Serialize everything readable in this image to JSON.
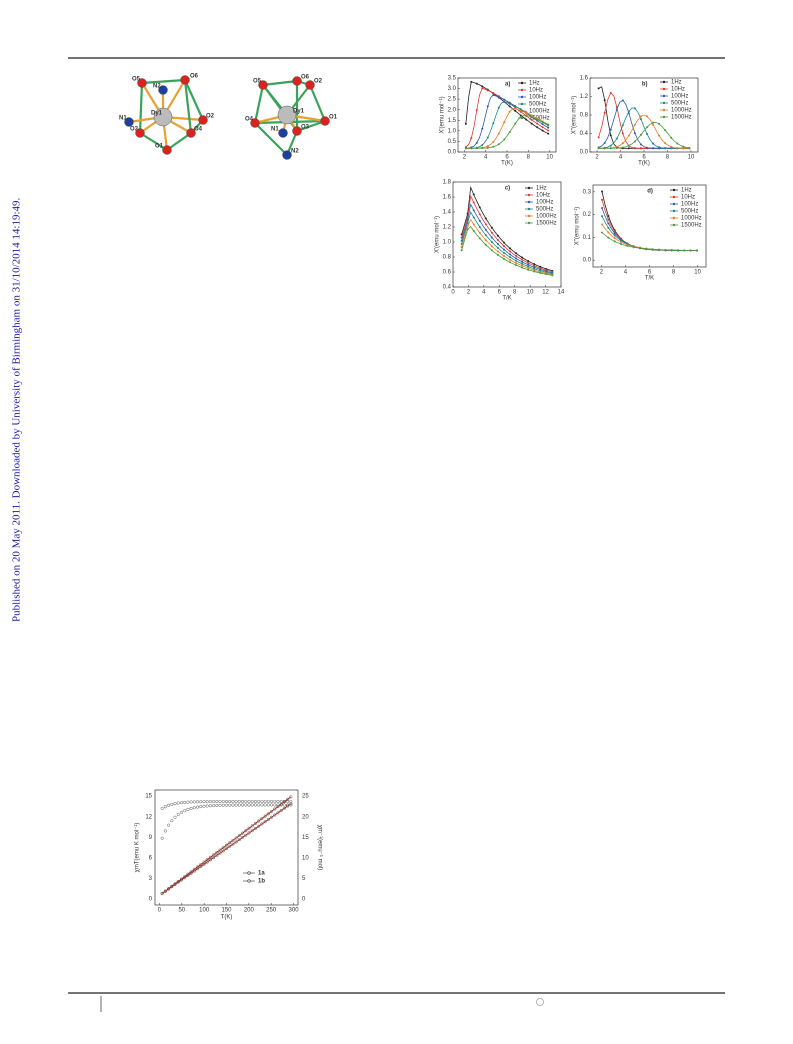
{
  "side_note": "Published on 20 May 2011. Downloaded by University of Birmingham on 31/10/2014 14:19:49.",
  "figures": {
    "molecule_a": {
      "labels": [
        "O5",
        "O6",
        "N2",
        "Dy1",
        "N1",
        "O2",
        "O3",
        "O4",
        "O1"
      ]
    },
    "molecule_b": {
      "labels": [
        "O5",
        "O6",
        "O2",
        "Dy1",
        "O4",
        "O3",
        "O1",
        "N1",
        "N2"
      ]
    },
    "panel_a": {
      "tag": "a)",
      "x_label": "T(K)",
      "y_label": "X'(emu mol⁻¹)",
      "x_ticks": [
        "2",
        "4",
        "6",
        "8",
        "10"
      ],
      "y_ticks": [
        "0.0",
        "0.5",
        "1.0",
        "1.5",
        "2.0",
        "2.5",
        "3.0",
        "3.5"
      ],
      "legend": [
        "1Hz",
        "10Hz",
        "100Hz",
        "500Hz",
        "1000Hz",
        "1500Hz"
      ]
    },
    "panel_b": {
      "tag": "b)",
      "x_label": "T(K)",
      "y_label": "X''(emu mol⁻¹)",
      "x_ticks": [
        "2",
        "4",
        "6",
        "8",
        "10"
      ],
      "y_ticks": [
        "0.0",
        "0.4",
        "0.8",
        "1.2",
        "1.6"
      ],
      "legend": [
        "1Hz",
        "10Hz",
        "100Hz",
        "500Hz",
        "1000Hz",
        "1500Hz"
      ]
    },
    "panel_c": {
      "tag": "c)",
      "x_label": "T/K",
      "y_label": "X'(emu mol⁻¹)",
      "x_ticks": [
        "0",
        "2",
        "4",
        "6",
        "8",
        "10",
        "12",
        "14"
      ],
      "y_ticks": [
        "0.4",
        "0.6",
        "0.8",
        "1.0",
        "1.2",
        "1.4",
        "1.6",
        "1.8"
      ],
      "legend": [
        "1Hz",
        "10Hz",
        "100Hz",
        "500Hz",
        "1000Hz",
        "1500Hz"
      ]
    },
    "panel_d": {
      "tag": "d)",
      "x_label": "T/K",
      "y_label": "X''(emu mol⁻¹)",
      "x_ticks": [
        "2",
        "4",
        "6",
        "8",
        "10"
      ],
      "y_ticks": [
        "0.0",
        "0.1",
        "0.2",
        "0.3"
      ],
      "legend": [
        "1Hz",
        "10Hz",
        "100Hz",
        "500Hz",
        "1000Hz",
        "1500Hz"
      ]
    },
    "susceptibility": {
      "x_label": "T(K)",
      "y_label": "χmT(emu K mol⁻¹)",
      "y2_label": "χm⁻¹(emu⁻¹ mol)",
      "x_ticks": [
        "0",
        "50",
        "100",
        "150",
        "200",
        "250",
        "300"
      ],
      "y_ticks": [
        "0",
        "3",
        "6",
        "9",
        "12",
        "15"
      ],
      "y2_ticks": [
        "0",
        "5",
        "10",
        "15",
        "20",
        "25"
      ],
      "legend": [
        "1a",
        "1b"
      ]
    }
  }
}
